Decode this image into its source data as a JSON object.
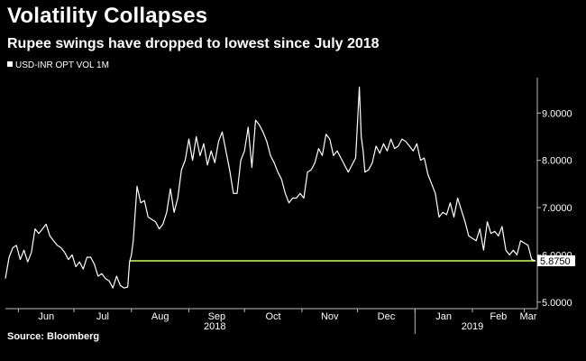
{
  "header": {
    "title": "Volatility Collapses",
    "subtitle": "Rupee swings have dropped to lowest since July 2018"
  },
  "footer": {
    "source": "Source: Bloomberg"
  },
  "colors": {
    "background": "#000000",
    "line": "#ffffff",
    "reference_line": "#ccff66",
    "label_box": "#ffffff"
  },
  "chart_data": {
    "type": "line",
    "title": "Volatility Collapses",
    "subtitle": "Rupee swings have dropped to lowest since July 2018",
    "legend": {
      "position": "top-left",
      "entries": [
        "USD-INR OPT VOL 1M"
      ]
    },
    "xlabel": "",
    "ylabel": "",
    "y_axis_side": "right",
    "ylim": [
      4.9,
      9.75
    ],
    "yticks": [
      5.0,
      6.0,
      7.0,
      8.0,
      9.0
    ],
    "ytick_labels": [
      "5.0000",
      "6.0000",
      "7.0000",
      "8.0000",
      "9.0000"
    ],
    "x_range": [
      "2018-05-25",
      "2019-03-08"
    ],
    "month_ticks": [
      {
        "label": "Jun",
        "date": "2018-06-01"
      },
      {
        "label": "Jul",
        "date": "2018-07-01"
      },
      {
        "label": "Aug",
        "date": "2018-08-01"
      },
      {
        "label": "Sep",
        "date": "2018-09-01"
      },
      {
        "label": "Oct",
        "date": "2018-10-01"
      },
      {
        "label": "Nov",
        "date": "2018-11-01"
      },
      {
        "label": "Dec",
        "date": "2018-12-01"
      },
      {
        "label": "Jan",
        "date": "2019-01-01"
      },
      {
        "label": "Feb",
        "date": "2019-02-01"
      },
      {
        "label": "Mar",
        "date": "2019-03-01"
      }
    ],
    "year_labels": [
      {
        "label": "2018",
        "date": "2018-09-15"
      },
      {
        "label": "2019",
        "date": "2019-02-01"
      }
    ],
    "grid": false,
    "reference_line": {
      "value": 5.875,
      "label": "5.8750",
      "start": "2018-07-31",
      "end": "2019-03-07"
    },
    "series": [
      {
        "name": "USD-INR OPT VOL 1M",
        "points": [
          [
            "2018-05-25",
            5.5
          ],
          [
            "2018-05-27",
            5.95
          ],
          [
            "2018-05-29",
            6.15
          ],
          [
            "2018-05-31",
            6.2
          ],
          [
            "2018-06-02",
            5.9
          ],
          [
            "2018-06-04",
            6.1
          ],
          [
            "2018-06-06",
            5.85
          ],
          [
            "2018-06-08",
            6.05
          ],
          [
            "2018-06-10",
            6.55
          ],
          [
            "2018-06-12",
            6.45
          ],
          [
            "2018-06-14",
            6.55
          ],
          [
            "2018-06-16",
            6.65
          ],
          [
            "2018-06-18",
            6.4
          ],
          [
            "2018-06-20",
            6.3
          ],
          [
            "2018-06-22",
            6.2
          ],
          [
            "2018-06-24",
            6.15
          ],
          [
            "2018-06-26",
            6.05
          ],
          [
            "2018-06-28",
            5.9
          ],
          [
            "2018-06-30",
            6.0
          ],
          [
            "2018-07-02",
            5.75
          ],
          [
            "2018-07-04",
            5.85
          ],
          [
            "2018-07-06",
            5.7
          ],
          [
            "2018-07-08",
            5.95
          ],
          [
            "2018-07-10",
            5.95
          ],
          [
            "2018-07-12",
            5.8
          ],
          [
            "2018-07-14",
            5.55
          ],
          [
            "2018-07-16",
            5.6
          ],
          [
            "2018-07-18",
            5.5
          ],
          [
            "2018-07-20",
            5.45
          ],
          [
            "2018-07-22",
            5.3
          ],
          [
            "2018-07-24",
            5.55
          ],
          [
            "2018-07-26",
            5.35
          ],
          [
            "2018-07-28",
            5.3
          ],
          [
            "2018-07-30",
            5.32
          ],
          [
            "2018-07-31",
            5.85
          ],
          [
            "2018-08-01",
            6.0
          ],
          [
            "2018-08-02",
            6.3
          ],
          [
            "2018-08-04",
            7.45
          ],
          [
            "2018-08-06",
            7.1
          ],
          [
            "2018-08-08",
            7.15
          ],
          [
            "2018-08-10",
            6.8
          ],
          [
            "2018-08-12",
            6.75
          ],
          [
            "2018-08-14",
            6.7
          ],
          [
            "2018-08-16",
            6.55
          ],
          [
            "2018-08-18",
            6.65
          ],
          [
            "2018-08-20",
            6.9
          ],
          [
            "2018-08-22",
            7.4
          ],
          [
            "2018-08-24",
            6.9
          ],
          [
            "2018-08-26",
            7.2
          ],
          [
            "2018-08-28",
            7.8
          ],
          [
            "2018-08-30",
            8.0
          ],
          [
            "2018-09-01",
            8.45
          ],
          [
            "2018-09-03",
            8.0
          ],
          [
            "2018-09-05",
            8.5
          ],
          [
            "2018-09-07",
            8.1
          ],
          [
            "2018-09-09",
            8.35
          ],
          [
            "2018-09-11",
            7.9
          ],
          [
            "2018-09-13",
            8.2
          ],
          [
            "2018-09-15",
            7.95
          ],
          [
            "2018-09-17",
            8.4
          ],
          [
            "2018-09-19",
            8.6
          ],
          [
            "2018-09-21",
            8.2
          ],
          [
            "2018-09-23",
            7.8
          ],
          [
            "2018-09-25",
            7.3
          ],
          [
            "2018-09-27",
            7.3
          ],
          [
            "2018-09-29",
            8.0
          ],
          [
            "2018-10-01",
            8.2
          ],
          [
            "2018-10-03",
            8.7
          ],
          [
            "2018-10-05",
            7.85
          ],
          [
            "2018-10-07",
            8.85
          ],
          [
            "2018-10-09",
            8.75
          ],
          [
            "2018-10-11",
            8.6
          ],
          [
            "2018-10-13",
            8.4
          ],
          [
            "2018-10-15",
            8.1
          ],
          [
            "2018-10-17",
            7.95
          ],
          [
            "2018-10-19",
            7.75
          ],
          [
            "2018-10-21",
            7.6
          ],
          [
            "2018-10-23",
            7.3
          ],
          [
            "2018-10-25",
            7.1
          ],
          [
            "2018-10-27",
            7.2
          ],
          [
            "2018-10-29",
            7.2
          ],
          [
            "2018-10-31",
            7.3
          ],
          [
            "2018-11-02",
            7.2
          ],
          [
            "2018-11-04",
            7.75
          ],
          [
            "2018-11-06",
            7.8
          ],
          [
            "2018-11-08",
            7.95
          ],
          [
            "2018-11-10",
            8.25
          ],
          [
            "2018-11-12",
            8.1
          ],
          [
            "2018-11-14",
            8.55
          ],
          [
            "2018-11-16",
            8.45
          ],
          [
            "2018-11-18",
            8.1
          ],
          [
            "2018-11-20",
            8.2
          ],
          [
            "2018-11-22",
            8.05
          ],
          [
            "2018-11-24",
            7.9
          ],
          [
            "2018-11-26",
            7.75
          ],
          [
            "2018-11-28",
            7.9
          ],
          [
            "2018-11-30",
            8.05
          ],
          [
            "2018-12-02",
            9.55
          ],
          [
            "2018-12-03",
            8.5
          ],
          [
            "2018-12-04",
            8.2
          ],
          [
            "2018-12-05",
            7.75
          ],
          [
            "2018-12-07",
            7.8
          ],
          [
            "2018-12-09",
            7.95
          ],
          [
            "2018-12-11",
            8.3
          ],
          [
            "2018-12-13",
            8.15
          ],
          [
            "2018-12-15",
            8.35
          ],
          [
            "2018-12-17",
            8.2
          ],
          [
            "2018-12-19",
            8.45
          ],
          [
            "2018-12-21",
            8.25
          ],
          [
            "2018-12-23",
            8.3
          ],
          [
            "2018-12-25",
            8.45
          ],
          [
            "2018-12-27",
            8.4
          ],
          [
            "2018-12-29",
            8.3
          ],
          [
            "2018-12-31",
            8.2
          ],
          [
            "2019-01-02",
            8.35
          ],
          [
            "2019-01-04",
            8.0
          ],
          [
            "2019-01-06",
            8.05
          ],
          [
            "2019-01-08",
            7.7
          ],
          [
            "2019-01-10",
            7.5
          ],
          [
            "2019-01-12",
            7.3
          ],
          [
            "2019-01-14",
            6.8
          ],
          [
            "2019-01-16",
            6.9
          ],
          [
            "2019-01-18",
            6.85
          ],
          [
            "2019-01-20",
            7.1
          ],
          [
            "2019-01-22",
            6.8
          ],
          [
            "2019-01-24",
            7.2
          ],
          [
            "2019-01-26",
            6.95
          ],
          [
            "2019-01-28",
            6.7
          ],
          [
            "2019-01-30",
            6.4
          ],
          [
            "2019-02-01",
            6.35
          ],
          [
            "2019-02-03",
            6.3
          ],
          [
            "2019-02-05",
            6.55
          ],
          [
            "2019-02-07",
            6.1
          ],
          [
            "2019-02-09",
            6.7
          ],
          [
            "2019-02-11",
            6.45
          ],
          [
            "2019-02-13",
            6.5
          ],
          [
            "2019-02-15",
            6.4
          ],
          [
            "2019-02-17",
            6.6
          ],
          [
            "2019-02-19",
            6.1
          ],
          [
            "2019-02-21",
            6.0
          ],
          [
            "2019-02-23",
            6.1
          ],
          [
            "2019-02-25",
            6.0
          ],
          [
            "2019-02-27",
            6.3
          ],
          [
            "2019-03-01",
            6.25
          ],
          [
            "2019-03-03",
            6.2
          ],
          [
            "2019-03-05",
            5.9
          ],
          [
            "2019-03-07",
            5.875
          ]
        ]
      }
    ]
  }
}
